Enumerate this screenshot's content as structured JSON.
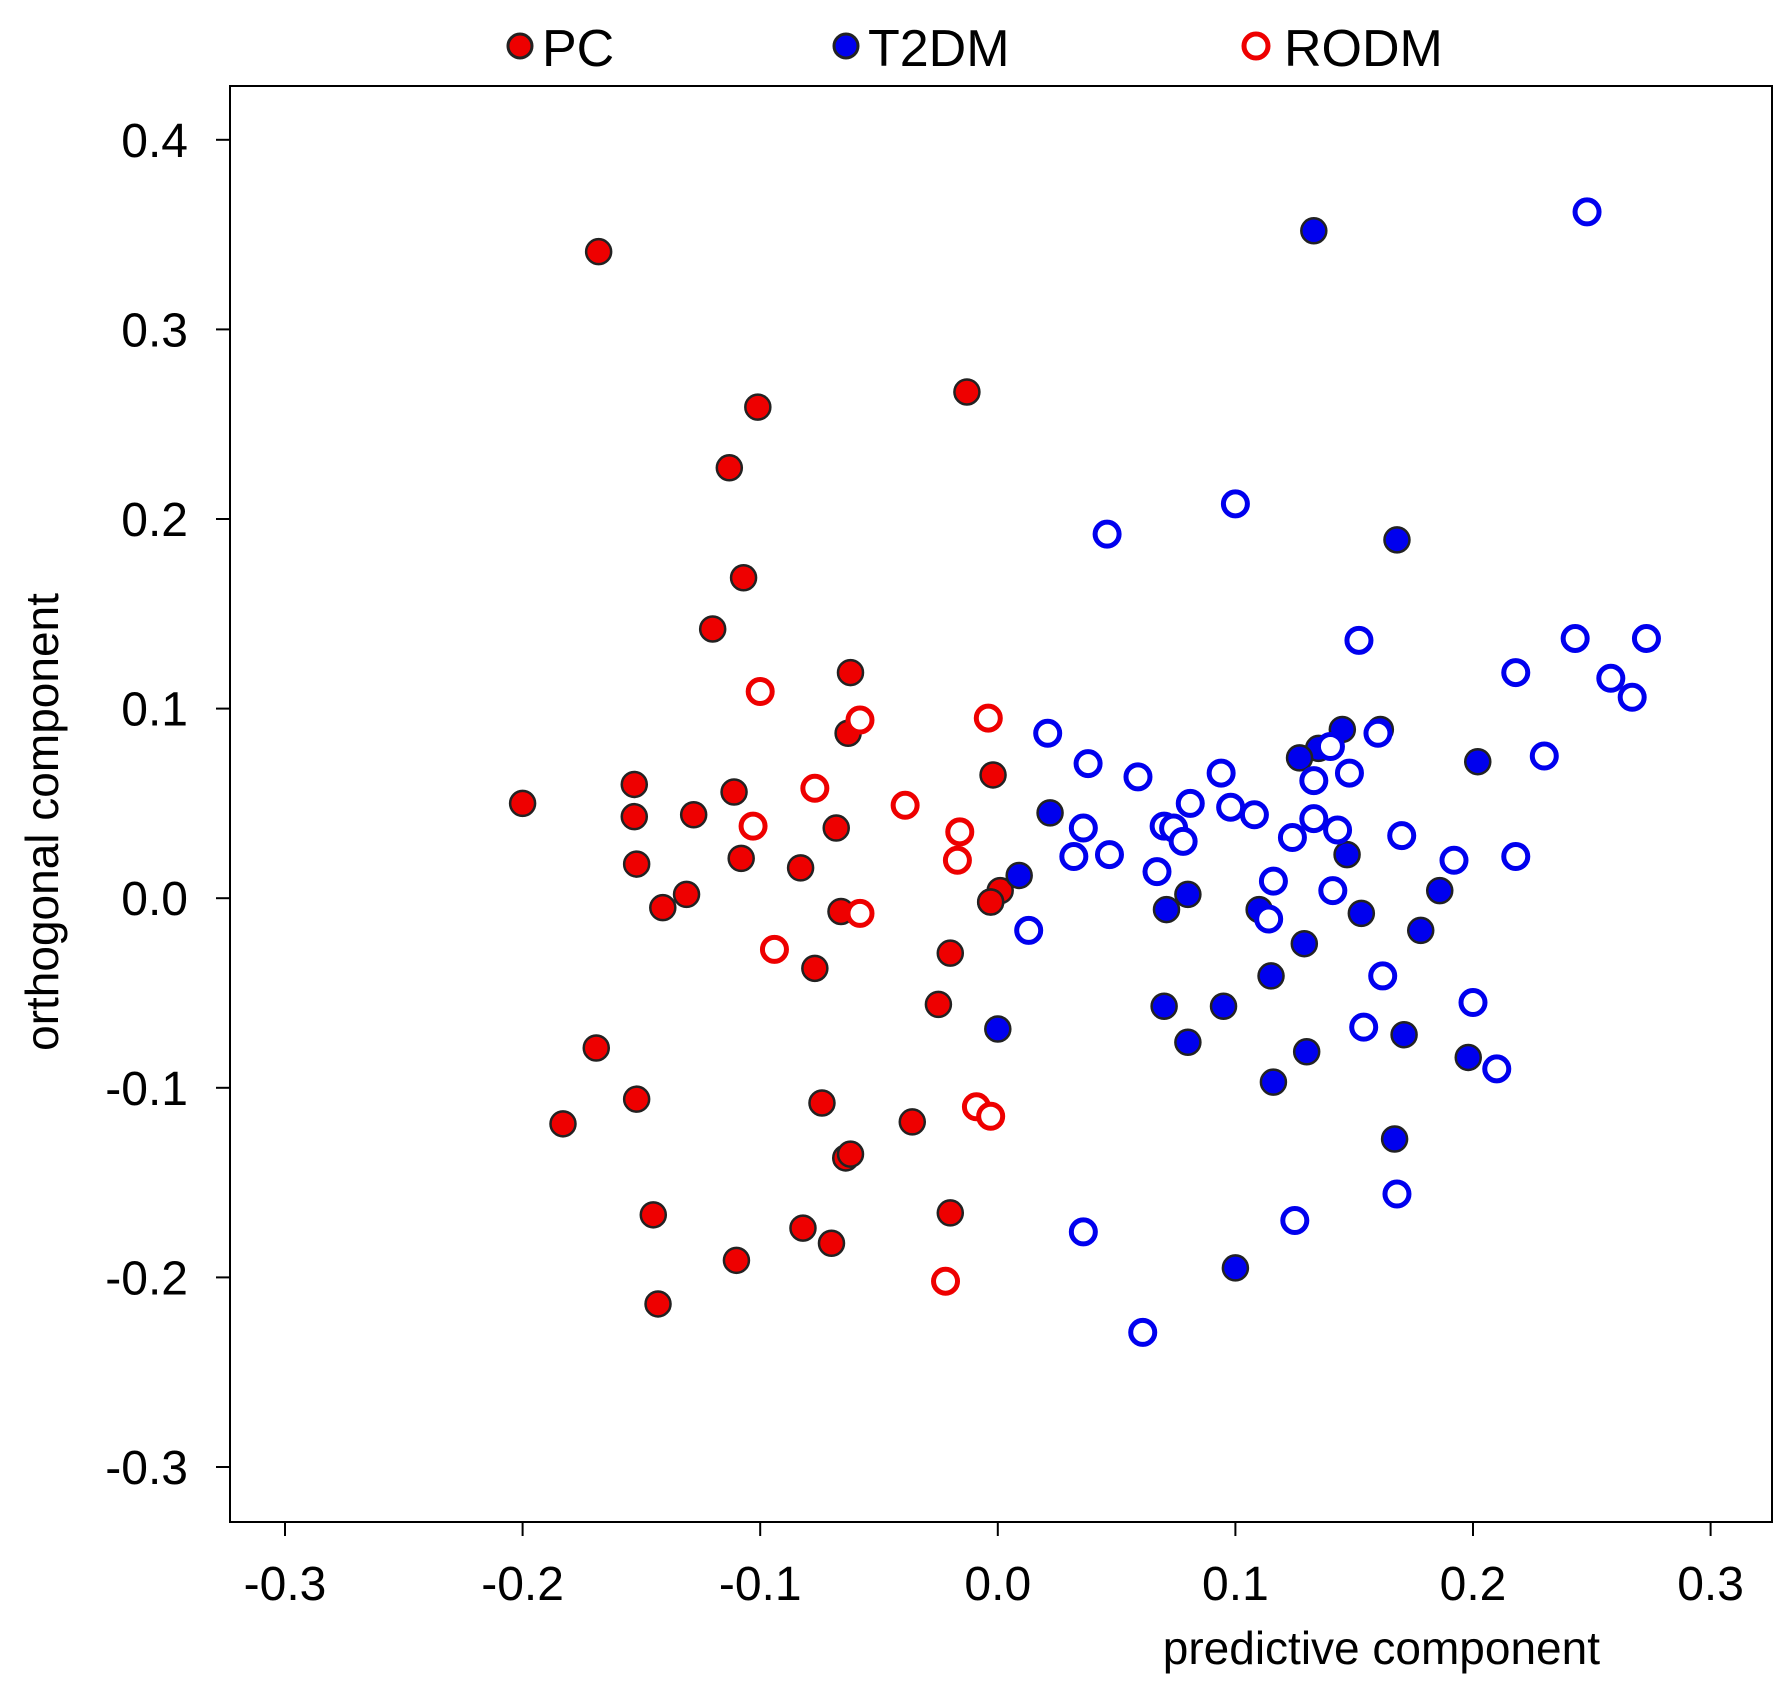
{
  "chart_data": {
    "type": "scatter",
    "xlabel": "predictive component",
    "ylabel": "orthogonal component",
    "xlim": [
      -0.3,
      0.3
    ],
    "ylim": [
      -0.3,
      0.4
    ],
    "xticks": [
      "-0.3",
      "-0.2",
      "-0.1",
      "0.0",
      "0.1",
      "0.2",
      "0.3"
    ],
    "yticks": [
      "0.4",
      "0.3",
      "0.2",
      "0.1",
      "0.0",
      "-0.1",
      "-0.2",
      "-0.3"
    ],
    "grid": false,
    "legend": "top",
    "colors": {
      "red": "#ee0000",
      "blue": "#0000ee",
      "outline": "#222222"
    },
    "legend_entries": [
      {
        "label": "PC",
        "style": "filled-red"
      },
      {
        "label": "T2DM",
        "style": "filled-blue"
      },
      {
        "label": "RODM",
        "style": "hollow"
      }
    ],
    "series": [
      {
        "name": "PC",
        "marker": "filled",
        "color": "#ee0000",
        "x": [
          -0.168,
          -0.013,
          -0.101,
          -0.113,
          -0.107,
          -0.12,
          -0.062,
          -0.063,
          -0.2,
          -0.153,
          -0.111,
          -0.128,
          -0.153,
          -0.108,
          -0.152,
          -0.131,
          -0.141,
          -0.068,
          -0.083,
          -0.077,
          -0.066,
          -0.002,
          0.001,
          -0.003,
          -0.003,
          -0.02,
          -0.025,
          -0.169,
          -0.183,
          -0.152,
          -0.074,
          -0.036,
          -0.064,
          -0.062,
          -0.145,
          -0.02,
          -0.082,
          -0.07,
          -0.11,
          -0.143
        ],
        "y": [
          0.341,
          0.267,
          0.259,
          0.227,
          0.169,
          0.142,
          0.119,
          0.087,
          0.05,
          0.06,
          0.056,
          0.044,
          0.043,
          0.021,
          0.018,
          0.002,
          -0.005,
          0.037,
          0.016,
          -0.037,
          -0.007,
          0.065,
          0.004,
          -0.002,
          -0.002,
          -0.029,
          -0.056,
          -0.079,
          -0.119,
          -0.106,
          -0.108,
          -0.118,
          -0.137,
          -0.135,
          -0.167,
          -0.166,
          -0.174,
          -0.182,
          -0.191,
          -0.214
        ]
      },
      {
        "name": "RODM",
        "marker": "hollow",
        "color": "#ee0000",
        "x": [
          -0.1,
          -0.058,
          -0.004,
          -0.077,
          -0.039,
          -0.103,
          -0.016,
          -0.017,
          -0.058,
          -0.094,
          -0.009,
          -0.003,
          -0.022
        ],
        "y": [
          0.109,
          0.094,
          0.095,
          0.058,
          0.049,
          0.038,
          0.035,
          0.02,
          -0.008,
          -0.027,
          -0.11,
          -0.115,
          -0.202
        ]
      },
      {
        "name": "T2DM",
        "marker": "filled",
        "color": "#0000ee",
        "x": [
          0.133,
          0.168,
          0.145,
          0.161,
          0.202,
          0.135,
          0.127,
          0.022,
          0.009,
          0.147,
          0.071,
          0.08,
          0.11,
          0.129,
          0.153,
          0.186,
          0.178,
          0.115,
          0.0,
          0.07,
          0.095,
          0.08,
          0.13,
          0.171,
          0.198,
          0.116,
          0.167,
          0.1
        ],
        "y": [
          0.352,
          0.189,
          0.089,
          0.089,
          0.072,
          0.079,
          0.074,
          0.045,
          0.012,
          0.023,
          -0.006,
          0.002,
          -0.006,
          -0.024,
          -0.008,
          0.004,
          -0.017,
          -0.041,
          -0.069,
          -0.057,
          -0.057,
          -0.076,
          -0.081,
          -0.072,
          -0.084,
          -0.097,
          -0.127,
          -0.195
        ]
      },
      {
        "name": "RODM",
        "marker": "hollow",
        "color": "#0000ee",
        "x": [
          0.248,
          0.1,
          0.046,
          0.152,
          0.243,
          0.273,
          0.218,
          0.258,
          0.267,
          0.021,
          0.038,
          0.059,
          0.094,
          0.081,
          0.098,
          0.108,
          0.036,
          0.07,
          0.074,
          0.078,
          0.032,
          0.047,
          0.067,
          0.133,
          0.148,
          0.14,
          0.16,
          0.23,
          0.133,
          0.143,
          0.124,
          0.17,
          0.192,
          0.218,
          0.116,
          0.141,
          0.114,
          0.013,
          0.162,
          0.2,
          0.154,
          0.21,
          0.168,
          0.125,
          0.036,
          0.061
        ],
        "y": [
          0.362,
          0.208,
          0.192,
          0.136,
          0.137,
          0.137,
          0.119,
          0.116,
          0.106,
          0.087,
          0.071,
          0.064,
          0.066,
          0.05,
          0.048,
          0.044,
          0.037,
          0.038,
          0.037,
          0.03,
          0.022,
          0.023,
          0.014,
          0.062,
          0.066,
          0.08,
          0.087,
          0.075,
          0.042,
          0.036,
          0.032,
          0.033,
          0.02,
          0.022,
          0.009,
          0.004,
          -0.011,
          -0.017,
          -0.041,
          -0.055,
          -0.068,
          -0.09,
          -0.156,
          -0.17,
          -0.176,
          -0.229
        ]
      }
    ]
  }
}
